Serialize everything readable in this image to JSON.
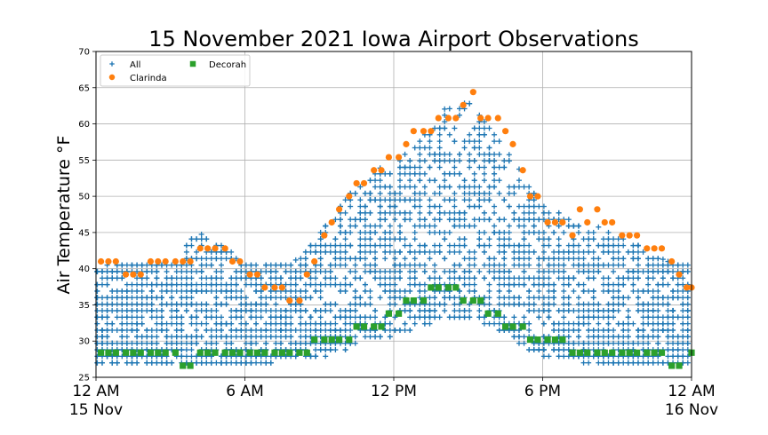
{
  "chart_data": {
    "type": "scatter",
    "title": "15 November 2021 Iowa Airport Observations",
    "xlabel": "",
    "ylabel": "Air Temperature $^\\circ$F",
    "ylabel_text": "Air Temperature ",
    "ylabel_unit": "°F",
    "xlim": [
      0,
      24
    ],
    "ylim": [
      25,
      70
    ],
    "xticks": [
      {
        "x": 0,
        "label": "12 AM",
        "sublabel": "15 Nov"
      },
      {
        "x": 6,
        "label": "6 AM",
        "sublabel": ""
      },
      {
        "x": 12,
        "label": "12 PM",
        "sublabel": ""
      },
      {
        "x": 18,
        "label": "6 PM",
        "sublabel": ""
      },
      {
        "x": 24,
        "label": "12 AM",
        "sublabel": "16 Nov"
      }
    ],
    "yticks": [
      25,
      30,
      35,
      40,
      45,
      50,
      55,
      60,
      65,
      70
    ],
    "grid": true,
    "legend_position": "top-left",
    "series": [
      {
        "name": "All",
        "marker": "plus",
        "color": "#1f77b4",
        "envelope": {
          "hours": [
            0,
            1,
            2,
            3,
            3.5,
            4,
            5,
            6,
            7,
            8,
            9,
            10,
            11,
            12,
            13,
            14,
            15,
            16,
            17,
            18,
            19,
            20,
            21,
            22,
            23,
            24
          ],
          "min": [
            27,
            27,
            27,
            27,
            27,
            26.5,
            27,
            27,
            27,
            28,
            28,
            29,
            30,
            31,
            32,
            33,
            33,
            32,
            30,
            28,
            28,
            27,
            27,
            27,
            27,
            27
          ],
          "max": [
            41,
            41,
            41,
            41,
            43,
            45,
            44,
            41,
            41,
            41,
            45,
            50,
            53,
            55,
            58,
            62,
            63,
            59,
            54,
            49,
            47,
            46,
            45,
            43,
            41,
            41
          ]
        },
        "stations_per_hour": 30
      },
      {
        "name": "Clarinda",
        "marker": "circle",
        "color": "#ff7f0e",
        "points": [
          [
            0.2,
            41
          ],
          [
            0.5,
            41
          ],
          [
            0.8,
            41
          ],
          [
            1.2,
            39.2
          ],
          [
            1.5,
            39.2
          ],
          [
            1.8,
            39.2
          ],
          [
            2.2,
            41
          ],
          [
            2.5,
            41
          ],
          [
            2.8,
            41
          ],
          [
            3.2,
            41
          ],
          [
            3.5,
            41
          ],
          [
            3.8,
            41
          ],
          [
            4.2,
            42.8
          ],
          [
            4.5,
            42.8
          ],
          [
            4.8,
            42.8
          ],
          [
            5.2,
            42.8
          ],
          [
            5.5,
            41
          ],
          [
            5.8,
            41
          ],
          [
            6.2,
            39.2
          ],
          [
            6.5,
            39.2
          ],
          [
            6.8,
            37.4
          ],
          [
            7.2,
            37.4
          ],
          [
            7.5,
            37.4
          ],
          [
            7.8,
            35.6
          ],
          [
            8.2,
            35.6
          ],
          [
            8.5,
            39.2
          ],
          [
            8.8,
            41
          ],
          [
            9.2,
            44.6
          ],
          [
            9.5,
            46.4
          ],
          [
            9.8,
            48.2
          ],
          [
            10.2,
            50
          ],
          [
            10.5,
            51.8
          ],
          [
            10.8,
            51.8
          ],
          [
            11.2,
            53.6
          ],
          [
            11.5,
            53.6
          ],
          [
            11.8,
            55.4
          ],
          [
            12.2,
            55.4
          ],
          [
            12.5,
            57.2
          ],
          [
            12.8,
            59
          ],
          [
            13.2,
            59
          ],
          [
            13.5,
            59
          ],
          [
            13.8,
            60.8
          ],
          [
            14.2,
            60.8
          ],
          [
            14.5,
            60.8
          ],
          [
            14.8,
            62.6
          ],
          [
            15.2,
            64.4
          ],
          [
            15.5,
            60.8
          ],
          [
            15.8,
            60.8
          ],
          [
            16.2,
            60.8
          ],
          [
            16.5,
            59
          ],
          [
            16.8,
            57.2
          ],
          [
            17.2,
            53.6
          ],
          [
            17.5,
            50
          ],
          [
            17.8,
            50
          ],
          [
            18.2,
            46.4
          ],
          [
            18.5,
            46.4
          ],
          [
            18.8,
            46.4
          ],
          [
            19.2,
            44.6
          ],
          [
            19.5,
            48.2
          ],
          [
            19.8,
            46.4
          ],
          [
            20.2,
            48.2
          ],
          [
            20.5,
            46.4
          ],
          [
            20.8,
            46.4
          ],
          [
            21.2,
            44.6
          ],
          [
            21.5,
            44.6
          ],
          [
            21.8,
            44.6
          ],
          [
            22.2,
            42.8
          ],
          [
            22.5,
            42.8
          ],
          [
            22.8,
            42.8
          ],
          [
            23.2,
            41
          ],
          [
            23.5,
            39.2
          ],
          [
            23.8,
            37.4
          ],
          [
            24,
            37.4
          ]
        ]
      },
      {
        "name": "Decorah",
        "marker": "square",
        "color": "#2ca02c",
        "points": [
          [
            0.2,
            28.4
          ],
          [
            0.5,
            28.4
          ],
          [
            0.8,
            28.4
          ],
          [
            1.2,
            28.4
          ],
          [
            1.5,
            28.4
          ],
          [
            1.8,
            28.4
          ],
          [
            2.2,
            28.4
          ],
          [
            2.5,
            28.4
          ],
          [
            2.8,
            28.4
          ],
          [
            3.2,
            28.4
          ],
          [
            3.5,
            26.6
          ],
          [
            3.8,
            26.6
          ],
          [
            4.2,
            28.4
          ],
          [
            4.5,
            28.4
          ],
          [
            4.8,
            28.4
          ],
          [
            5.2,
            28.4
          ],
          [
            5.5,
            28.4
          ],
          [
            5.8,
            28.4
          ],
          [
            6.2,
            28.4
          ],
          [
            6.5,
            28.4
          ],
          [
            6.8,
            28.4
          ],
          [
            7.2,
            28.4
          ],
          [
            7.5,
            28.4
          ],
          [
            7.8,
            28.4
          ],
          [
            8.2,
            28.4
          ],
          [
            8.5,
            28.4
          ],
          [
            8.8,
            30.2
          ],
          [
            9.2,
            30.2
          ],
          [
            9.5,
            30.2
          ],
          [
            9.8,
            30.2
          ],
          [
            10.2,
            30.2
          ],
          [
            10.5,
            32
          ],
          [
            10.8,
            32
          ],
          [
            11.2,
            32
          ],
          [
            11.5,
            32
          ],
          [
            11.8,
            33.8
          ],
          [
            12.2,
            33.8
          ],
          [
            12.5,
            35.6
          ],
          [
            12.8,
            35.6
          ],
          [
            13.2,
            35.6
          ],
          [
            13.5,
            37.4
          ],
          [
            13.8,
            37.4
          ],
          [
            14.2,
            37.4
          ],
          [
            14.5,
            37.4
          ],
          [
            14.8,
            35.6
          ],
          [
            15.2,
            35.6
          ],
          [
            15.5,
            35.6
          ],
          [
            15.8,
            33.8
          ],
          [
            16.2,
            33.8
          ],
          [
            16.5,
            32
          ],
          [
            16.8,
            32
          ],
          [
            17.2,
            32
          ],
          [
            17.5,
            30.2
          ],
          [
            17.8,
            30.2
          ],
          [
            18.2,
            30.2
          ],
          [
            18.5,
            30.2
          ],
          [
            18.8,
            30.2
          ],
          [
            19.2,
            28.4
          ],
          [
            19.5,
            28.4
          ],
          [
            19.8,
            28.4
          ],
          [
            20.2,
            28.4
          ],
          [
            20.5,
            28.4
          ],
          [
            20.8,
            28.4
          ],
          [
            21.2,
            28.4
          ],
          [
            21.5,
            28.4
          ],
          [
            21.8,
            28.4
          ],
          [
            22.2,
            28.4
          ],
          [
            22.5,
            28.4
          ],
          [
            22.8,
            28.4
          ],
          [
            23.2,
            26.6
          ],
          [
            23.5,
            26.6
          ],
          [
            24,
            28.4
          ]
        ]
      }
    ]
  }
}
